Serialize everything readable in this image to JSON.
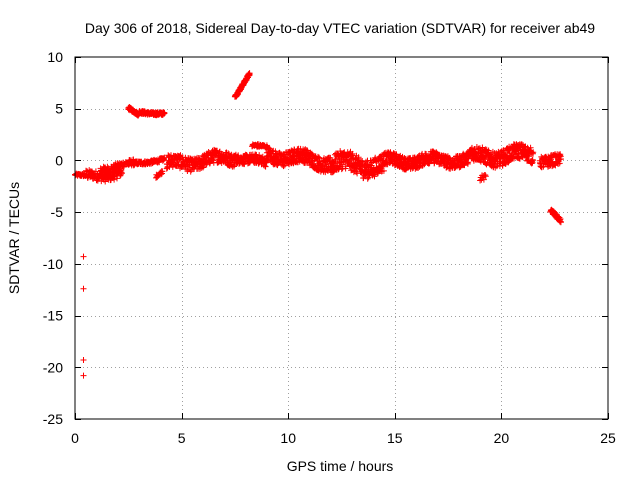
{
  "chart_data": {
    "type": "scatter",
    "title": "Day 306 of 2018, Sidereal Day-to-day VTEC variation (SDTVAR) for receiver ab49",
    "xlabel": "GPS time / hours",
    "ylabel": "SDTVAR / TECUs",
    "xlim": [
      0,
      25
    ],
    "ylim": [
      -25,
      10
    ],
    "xticks": [
      0,
      5,
      10,
      15,
      20,
      25
    ],
    "yticks": [
      -25,
      -20,
      -15,
      -10,
      -5,
      0,
      5,
      10
    ],
    "marker": "+",
    "grid": true,
    "series": [
      {
        "name": "SDTVAR",
        "color": "#ff0000",
        "segments": [
          {
            "t": [
              0.0,
              0.5
            ],
            "v": [
              -1.4,
              -1.5
            ],
            "noise": 0.25,
            "step": 0.02
          },
          {
            "t": [
              0.5,
              2.2
            ],
            "v": [
              -1.6,
              -1.2
            ],
            "noise": 0.9,
            "step": 0.015
          },
          {
            "t": [
              1.2,
              2.8
            ],
            "v": [
              -0.8,
              -0.3
            ],
            "noise": 0.6,
            "step": 0.02
          },
          {
            "t": [
              2.5,
              4.2
            ],
            "v": [
              -0.4,
              0.1
            ],
            "noise": 0.35,
            "step": 0.015
          },
          {
            "t": [
              2.5,
              3.0
            ],
            "v": [
              5.0,
              4.4
            ],
            "noise": 0.3,
            "step": 0.01
          },
          {
            "t": [
              3.0,
              4.2
            ],
            "v": [
              4.7,
              4.5
            ],
            "noise": 0.3,
            "step": 0.012
          },
          {
            "t": [
              3.8,
              4.1
            ],
            "v": [
              -1.5,
              -1.1
            ],
            "noise": 0.3,
            "step": 0.02
          },
          {
            "t": [
              4.3,
              7.5
            ],
            "v": [
              -0.4,
              0.3
            ],
            "noise": 1.3,
            "step": 0.012
          },
          {
            "t": [
              7.5,
              8.2
            ],
            "v": [
              6.2,
              8.4
            ],
            "noise": 0.3,
            "step": 0.008
          },
          {
            "t": [
              7.5,
              9.0
            ],
            "v": [
              0.4,
              -0.3
            ],
            "noise": 0.9,
            "step": 0.012
          },
          {
            "t": [
              8.3,
              9.0
            ],
            "v": [
              1.4,
              1.3
            ],
            "noise": 0.3,
            "step": 0.02
          },
          {
            "t": [
              9.0,
              12.0
            ],
            "v": [
              0.6,
              -0.2
            ],
            "noise": 1.4,
            "step": 0.01
          },
          {
            "t": [
              12.0,
              14.5
            ],
            "v": [
              -0.3,
              -0.5
            ],
            "noise": 1.8,
            "step": 0.01
          },
          {
            "t": [
              14.5,
              18.5
            ],
            "v": [
              -0.1,
              0.1
            ],
            "noise": 1.2,
            "step": 0.01
          },
          {
            "t": [
              18.5,
              21.5
            ],
            "v": [
              0.3,
              0.6
            ],
            "noise": 1.5,
            "step": 0.01
          },
          {
            "t": [
              19.0,
              19.3
            ],
            "v": [
              -1.8,
              -1.6
            ],
            "noise": 0.5,
            "step": 0.03
          },
          {
            "t": [
              21.8,
              22.8
            ],
            "v": [
              0.1,
              -0.2
            ],
            "noise": 1.1,
            "step": 0.012
          },
          {
            "t": [
              22.3,
              22.8
            ],
            "v": [
              -4.8,
              -6.0
            ],
            "noise": 0.4,
            "step": 0.01
          }
        ],
        "outliers": [
          {
            "x": 0.4,
            "y": -9.3
          },
          {
            "x": 0.4,
            "y": -12.4
          },
          {
            "x": 0.4,
            "y": -19.3
          },
          {
            "x": 0.4,
            "y": -20.8
          }
        ]
      }
    ]
  }
}
